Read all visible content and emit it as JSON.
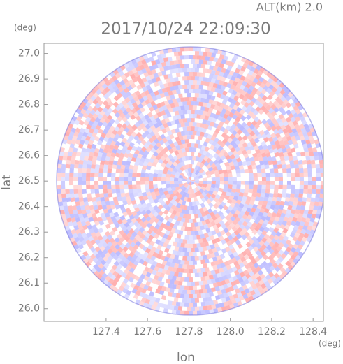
{
  "chart_data": {
    "type": "radar-ppi",
    "title": "2017/10/24 22:09:30",
    "subtitle": "ALT(km) 2.0",
    "x_label": "lon",
    "x_unit": "(deg)",
    "y_label": "lat",
    "y_unit": "(deg)",
    "xlim": [
      127.1,
      128.45
    ],
    "xticks": [
      127.4,
      127.6,
      127.8,
      {
        "value": 128.0,
        "label": "128.0"
      },
      128.2,
      128.4
    ],
    "ylim": [
      25.95,
      27.04
    ],
    "yticks": [
      {
        "value": 26.0,
        "label": "26.0"
      },
      26.1,
      26.2,
      26.3,
      26.4,
      26.5,
      26.6,
      26.7,
      26.8,
      26.9,
      {
        "value": 27.0,
        "label": "27.0"
      }
    ]
  }
}
